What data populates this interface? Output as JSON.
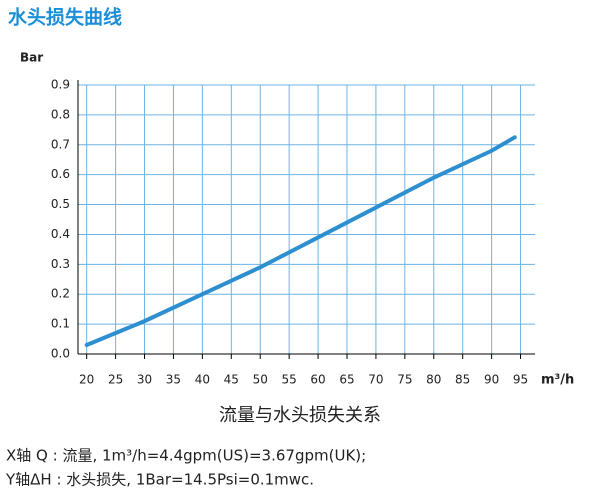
{
  "chart_data": {
    "type": "line",
    "title": "水头损失曲线",
    "y_label": "Bar",
    "x_label": "m³/h",
    "caption": "流量与水头损失关系",
    "notes": [
      "X轴 Q : 流量, 1m³/h=4.4gpm(US)=3.67gpm(UK);",
      "Y轴ΔH : 水头损失, 1Bar=14.5Psi=0.1mwc."
    ],
    "x": [
      20,
      30,
      40,
      50,
      60,
      70,
      80,
      90,
      94
    ],
    "values": [
      0.03,
      0.11,
      0.2,
      0.29,
      0.39,
      0.49,
      0.59,
      0.68,
      0.725
    ],
    "color": "#2e8fd0",
    "xlim": [
      18.5,
      97.5
    ],
    "xticks": [
      20,
      25,
      30,
      35,
      40,
      45,
      50,
      55,
      60,
      65,
      70,
      75,
      80,
      85,
      90,
      95
    ],
    "ylim": [
      0,
      0.9
    ],
    "yticks": [
      {
        "value": 0,
        "label": "0.0"
      },
      0.1,
      0.2,
      0.3,
      0.4,
      0.5,
      0.6,
      0.7,
      0.8,
      0.9
    ],
    "grid": true
  }
}
